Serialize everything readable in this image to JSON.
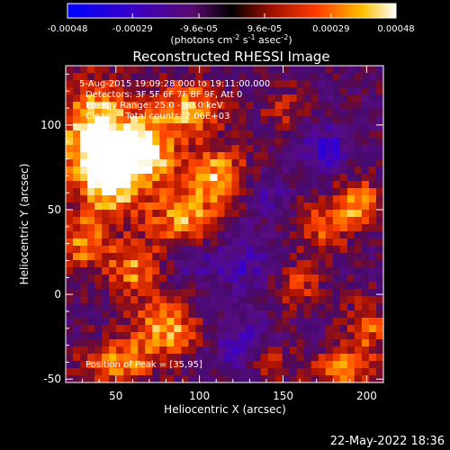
{
  "chart_data": {
    "type": "heatmap",
    "title": "Reconstructed RHESSI Image",
    "xlabel": "Heliocentric X (arcsec)",
    "ylabel": "Heliocentric Y (arcsec)",
    "xlim": [
      20,
      210
    ],
    "ylim": [
      -52,
      135
    ],
    "xticks": [
      50,
      100,
      150,
      200
    ],
    "yticks": [
      -50,
      0,
      50,
      100
    ],
    "colorbar": {
      "ticks": [
        "-0.00048",
        "-0.00029",
        "-9.6e-05",
        "9.6e-05",
        "0.00029",
        "0.00048"
      ],
      "range": [
        -0.00048,
        0.00048
      ],
      "unit_main": "(photons cm",
      "unit_sup1": "-2",
      "unit_mid1": " s",
      "unit_sup2": "-1",
      "unit_mid2": " asec",
      "unit_sup3": "-2",
      "unit_end": ")"
    },
    "annotations": [
      "5-Aug-2015 19:09:28.000 to 19:11:00.000",
      "Detectors: 3F 5F 6F 7F 8F 9F, Att 0",
      "Energy Range: 25.0 - 50.0 keV",
      "Clean     Total counts: 2.06E+03"
    ],
    "peak_label": "Position of Peak = [35,95]",
    "peak": [
      35,
      95
    ],
    "blobs": [
      {
        "x": 38,
        "y": 95,
        "sx": 16,
        "sy": 22,
        "a": 1.0
      },
      {
        "x": 48,
        "y": 70,
        "sx": 14,
        "sy": 18,
        "a": 0.9
      },
      {
        "x": 70,
        "y": 85,
        "sx": 12,
        "sy": 14,
        "a": 0.85
      },
      {
        "x": 95,
        "y": 110,
        "sx": 14,
        "sy": 12,
        "a": 0.8
      },
      {
        "x": 110,
        "y": 70,
        "sx": 14,
        "sy": 12,
        "a": 0.8
      },
      {
        "x": 90,
        "y": 45,
        "sx": 14,
        "sy": 12,
        "a": 0.75
      },
      {
        "x": 60,
        "y": 15,
        "sx": 12,
        "sy": 12,
        "a": 0.7
      },
      {
        "x": 80,
        "y": -20,
        "sx": 14,
        "sy": 12,
        "a": 0.8
      },
      {
        "x": 50,
        "y": -40,
        "sx": 16,
        "sy": 10,
        "a": 0.7
      },
      {
        "x": 30,
        "y": 30,
        "sx": 10,
        "sy": 12,
        "a": 0.65
      },
      {
        "x": 195,
        "y": 55,
        "sx": 10,
        "sy": 10,
        "a": 0.75
      },
      {
        "x": 175,
        "y": 40,
        "sx": 12,
        "sy": 12,
        "a": 0.55
      },
      {
        "x": 200,
        "y": -20,
        "sx": 10,
        "sy": 12,
        "a": 0.6
      },
      {
        "x": 185,
        "y": -45,
        "sx": 14,
        "sy": 8,
        "a": 0.7
      },
      {
        "x": 160,
        "y": 5,
        "sx": 10,
        "sy": 10,
        "a": 0.45
      },
      {
        "x": 140,
        "y": -40,
        "sx": 10,
        "sy": 8,
        "a": 0.45
      },
      {
        "x": 150,
        "y": 110,
        "sx": 10,
        "sy": 10,
        "a": 0.35
      }
    ],
    "cold_spots": [
      {
        "x": 175,
        "y": 85,
        "s": 10,
        "a": 0.6
      },
      {
        "x": 125,
        "y": 20,
        "s": 12,
        "a": 0.45
      },
      {
        "x": 125,
        "y": -30,
        "s": 12,
        "a": 0.45
      },
      {
        "x": 95,
        "y": 20,
        "s": 8,
        "a": 0.35
      },
      {
        "x": 140,
        "y": 60,
        "s": 10,
        "a": 0.3
      }
    ]
  },
  "footer_timestamp": "22-May-2022 18:36"
}
